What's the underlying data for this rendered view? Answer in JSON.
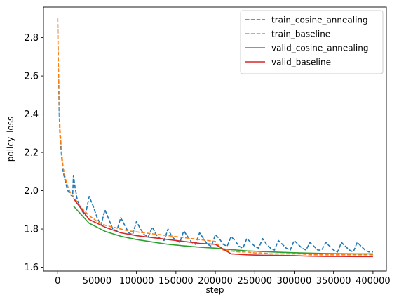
{
  "chart_data": {
    "type": "line",
    "xlabel": "step",
    "ylabel": "policy_loss",
    "xlim": [
      -18000,
      417000
    ],
    "ylim": [
      1.58,
      2.96
    ],
    "x_ticks": [
      0,
      50000,
      100000,
      150000,
      200000,
      250000,
      300000,
      350000,
      400000
    ],
    "x_tick_labels": [
      "0",
      "50000",
      "100000",
      "150000",
      "200000",
      "250000",
      "300000",
      "350000",
      "400000"
    ],
    "y_ticks": [
      1.6,
      1.8,
      2.0,
      2.2,
      2.4,
      2.6,
      2.8
    ],
    "y_tick_labels": [
      "1.6",
      "1.8",
      "2.0",
      "2.2",
      "2.4",
      "2.6",
      "2.8"
    ],
    "grid": false,
    "legend_position": "top-right",
    "series": [
      {
        "name": "train_cosine_annealing",
        "color": "#1f77b4",
        "dash": "dashed",
        "x": [
          0,
          1000,
          2000,
          3000,
          5000,
          7000,
          10000,
          13000,
          16000,
          19000,
          20000,
          22000,
          25000,
          30000,
          35000,
          40000,
          45000,
          50000,
          55000,
          60000,
          65000,
          70000,
          75000,
          80000,
          85000,
          90000,
          95000,
          100000,
          105000,
          110000,
          115000,
          120000,
          125000,
          130000,
          135000,
          140000,
          145000,
          150000,
          155000,
          160000,
          165000,
          170000,
          175000,
          180000,
          185000,
          190000,
          195000,
          200000,
          205000,
          210000,
          215000,
          220000,
          225000,
          230000,
          235000,
          240000,
          245000,
          250000,
          255000,
          260000,
          265000,
          270000,
          275000,
          280000,
          285000,
          290000,
          295000,
          300000,
          305000,
          310000,
          315000,
          320000,
          325000,
          330000,
          335000,
          340000,
          345000,
          350000,
          355000,
          360000,
          365000,
          370000,
          375000,
          380000,
          385000,
          390000,
          395000,
          400000
        ],
        "y": [
          2.9,
          2.6,
          2.4,
          2.28,
          2.18,
          2.1,
          2.04,
          2.0,
          1.98,
          1.97,
          2.08,
          2.02,
          1.95,
          1.9,
          1.87,
          1.97,
          1.92,
          1.86,
          1.82,
          1.9,
          1.85,
          1.8,
          1.79,
          1.86,
          1.82,
          1.78,
          1.77,
          1.84,
          1.8,
          1.77,
          1.76,
          1.81,
          1.77,
          1.75,
          1.74,
          1.8,
          1.76,
          1.74,
          1.73,
          1.79,
          1.76,
          1.73,
          1.72,
          1.78,
          1.75,
          1.72,
          1.71,
          1.77,
          1.75,
          1.72,
          1.71,
          1.76,
          1.74,
          1.71,
          1.7,
          1.75,
          1.73,
          1.71,
          1.7,
          1.75,
          1.72,
          1.7,
          1.69,
          1.74,
          1.72,
          1.7,
          1.69,
          1.74,
          1.72,
          1.7,
          1.69,
          1.73,
          1.71,
          1.69,
          1.69,
          1.73,
          1.71,
          1.69,
          1.68,
          1.73,
          1.71,
          1.69,
          1.68,
          1.73,
          1.71,
          1.69,
          1.68,
          1.68
        ]
      },
      {
        "name": "train_baseline",
        "color": "#ff7f0e",
        "dash": "dashed",
        "x": [
          0,
          1000,
          2000,
          3000,
          5000,
          7000,
          10000,
          13000,
          16000,
          20000,
          25000,
          30000,
          40000,
          50000,
          60000,
          70000,
          80000,
          90000,
          100000,
          110000,
          120000,
          130000,
          140000,
          150000,
          160000,
          170000,
          180000,
          190000,
          200000,
          205000,
          210000,
          220000,
          230000,
          240000,
          250000,
          260000,
          270000,
          280000,
          290000,
          300000,
          310000,
          320000,
          330000,
          340000,
          350000,
          360000,
          370000,
          380000,
          390000,
          400000
        ],
        "y": [
          2.9,
          2.65,
          2.45,
          2.32,
          2.2,
          2.12,
          2.06,
          2.02,
          1.99,
          1.97,
          1.94,
          1.91,
          1.87,
          1.84,
          1.82,
          1.81,
          1.8,
          1.79,
          1.785,
          1.78,
          1.775,
          1.77,
          1.765,
          1.76,
          1.755,
          1.75,
          1.745,
          1.74,
          1.735,
          1.71,
          1.69,
          1.685,
          1.68,
          1.68,
          1.675,
          1.675,
          1.67,
          1.67,
          1.67,
          1.67,
          1.67,
          1.665,
          1.665,
          1.665,
          1.665,
          1.665,
          1.665,
          1.665,
          1.665,
          1.665
        ]
      },
      {
        "name": "valid_cosine_annealing",
        "color": "#2ca02c",
        "dash": "solid",
        "x": [
          20000,
          40000,
          60000,
          80000,
          100000,
          120000,
          140000,
          160000,
          180000,
          200000,
          220000,
          240000,
          260000,
          280000,
          300000,
          320000,
          340000,
          360000,
          380000,
          400000
        ],
        "y": [
          1.92,
          1.83,
          1.788,
          1.762,
          1.745,
          1.732,
          1.72,
          1.712,
          1.705,
          1.7,
          1.692,
          1.686,
          1.682,
          1.679,
          1.676,
          1.674,
          1.672,
          1.671,
          1.67,
          1.67
        ]
      },
      {
        "name": "valid_baseline",
        "color": "#d62728",
        "dash": "solid",
        "x": [
          20000,
          40000,
          60000,
          80000,
          100000,
          120000,
          140000,
          160000,
          180000,
          200000,
          220000,
          240000,
          260000,
          280000,
          300000,
          320000,
          340000,
          360000,
          380000,
          400000
        ],
        "y": [
          1.96,
          1.85,
          1.81,
          1.78,
          1.765,
          1.755,
          1.745,
          1.735,
          1.725,
          1.72,
          1.67,
          1.665,
          1.663,
          1.662,
          1.661,
          1.658,
          1.657,
          1.657,
          1.656,
          1.656
        ]
      }
    ]
  }
}
